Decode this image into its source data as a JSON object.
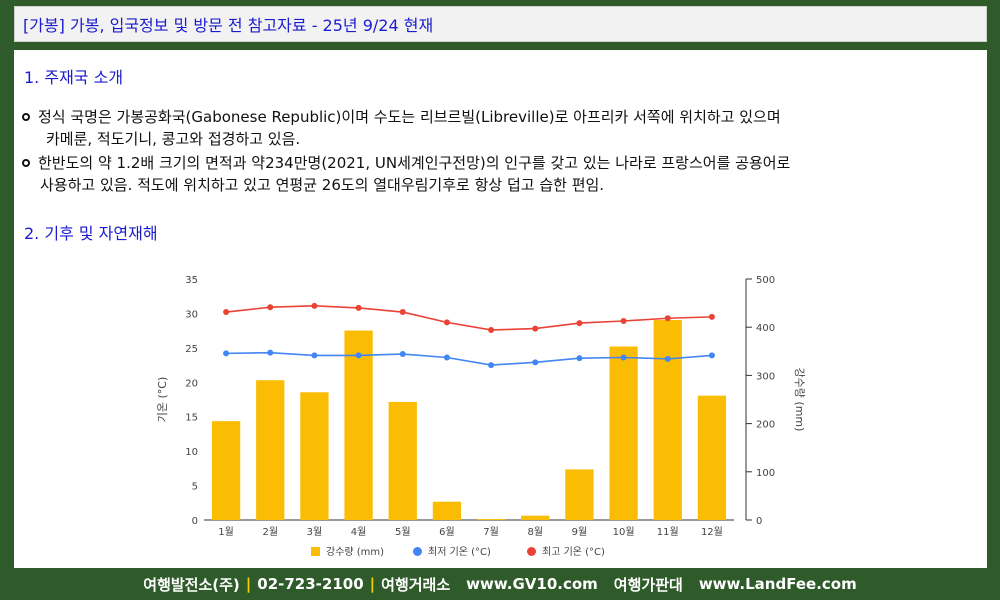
{
  "header": {
    "title": "[가봉] 가봉, 입국정보 및 방문 전 참고자료  - 25년 9/24 현재"
  },
  "sections": {
    "intro_heading": "1. 주재국 소개",
    "climate_heading": "2. 기후 및 자연재해"
  },
  "bullets": [
    {
      "line1": "정식 국명은 가봉공화국(Gabonese Republic)이며 수도는 리브르빌(Libreville)로 아프리카 서쪽에 위치하고 있으며",
      "line2": "카메룬, 적도기니, 콩고와 접경하고 있음."
    },
    {
      "line1": "한반도의 약 1.2배 크기의 면적과 약234만명(2021, UN세계인구전망)의 인구를 갖고 있는 나라로 프랑스어를 공용어로",
      "line2": "사용하고 있음. 적도에 위치하고 있고 연평균 26도의 열대우림기후로 항상 덥고 습한 편임."
    }
  ],
  "chart_data": {
    "type": "bar",
    "categories": [
      "1월",
      "2월",
      "3월",
      "4월",
      "5월",
      "6월",
      "7월",
      "8월",
      "9월",
      "10월",
      "11월",
      "12월"
    ],
    "series": [
      {
        "name": "강수량 (mm)",
        "kind": "bar",
        "axis": "right",
        "color": "#fbbc04",
        "values": [
          205,
          290,
          265,
          393,
          245,
          38,
          2,
          9,
          105,
          360,
          415,
          258
        ]
      },
      {
        "name": "최저 기온 (°C)",
        "kind": "line",
        "axis": "left",
        "color": "#4285f4",
        "values": [
          24.2,
          24.3,
          23.9,
          23.9,
          24.1,
          23.6,
          22.5,
          22.9,
          23.5,
          23.6,
          23.4,
          23.9
        ]
      },
      {
        "name": "최고 기온 (°C)",
        "kind": "line",
        "axis": "left",
        "color": "#ea4335",
        "values": [
          30.2,
          30.9,
          31.1,
          30.8,
          30.2,
          28.7,
          27.6,
          27.8,
          28.6,
          28.9,
          29.3,
          29.5
        ]
      }
    ],
    "ylabel_left": "기온 (°C)",
    "ylabel_right": "강수량 (mm)",
    "ylim_left": [
      0,
      35
    ],
    "yticks_left": [
      0,
      5,
      10,
      15,
      20,
      25,
      30,
      35
    ],
    "ylim_right": [
      0,
      500
    ],
    "yticks_right": [
      0,
      100,
      200,
      300,
      400,
      500
    ],
    "legend_position": "bottom",
    "grid": false
  },
  "footer": {
    "company": "여행발전소(주)",
    "phone": "02-723-2100",
    "exchange_label": "여행거래소",
    "exchange_url": "www.GV10.com",
    "price_label": "여행가판대",
    "price_url": "www.LandFee.com",
    "separator": "|"
  }
}
